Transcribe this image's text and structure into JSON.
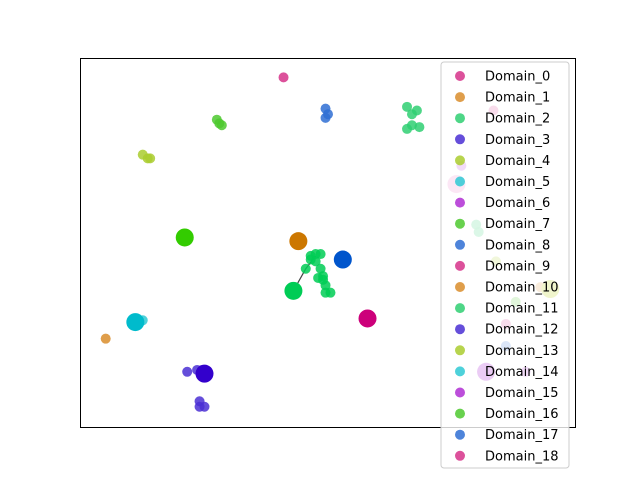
{
  "chart_data": {
    "type": "scatter",
    "title": "",
    "xlabel": "",
    "ylabel": "",
    "xlim": [
      0,
      100
    ],
    "ylim": [
      0,
      100
    ],
    "grid": false,
    "axes_ticks": false,
    "legend_position": "right",
    "series": [
      {
        "name": "Domain_0",
        "color": "#d6338a",
        "points": [
          [
            41,
            95
          ]
        ]
      },
      {
        "name": "Domain_1",
        "color": "#d98d2b",
        "points": [
          [
            5,
            24
          ]
        ]
      },
      {
        "name": "Domain_2",
        "color": "#2fcf72",
        "points": [
          [
            66,
            87
          ],
          [
            67,
            85
          ],
          [
            68,
            86
          ],
          [
            67,
            82
          ],
          [
            68.5,
            81.5
          ],
          [
            66,
            81
          ]
        ]
      },
      {
        "name": "Domain_3",
        "color": "#4a2fd4",
        "points": [
          [
            24,
            7
          ],
          [
            25,
            5.5
          ],
          [
            24,
            5.5
          ]
        ]
      },
      {
        "name": "Domain_4",
        "color": "#aacc2f",
        "points": [
          [
            12.5,
            74
          ],
          [
            13.5,
            73
          ],
          [
            14,
            73
          ]
        ]
      },
      {
        "name": "Domain_5",
        "color": "#2fc9d4",
        "points": [
          [
            76,
            66
          ]
        ]
      },
      {
        "name": "Domain_6",
        "color": "#b02fd4",
        "points": [
          [
            77,
            71
          ]
        ]
      },
      {
        "name": "Domain_7",
        "color": "#4dc92f",
        "points": [
          [
            27.5,
            83.5
          ],
          [
            28,
            82.5
          ],
          [
            28.5,
            82
          ]
        ]
      },
      {
        "name": "Domain_8",
        "color": "#2f6fd4",
        "points": [
          [
            49.5,
            86.5
          ],
          [
            49.5,
            84
          ],
          [
            50,
            85
          ]
        ]
      },
      {
        "name": "Domain_9",
        "color": "#d6338a",
        "points": [
          [
            83.5,
            86
          ]
        ]
      },
      {
        "name": "Domain_10",
        "color": "#d98d2b",
        "points": [
          [
            93,
            38
          ]
        ]
      },
      {
        "name": "Domain_11",
        "color": "#2fcf72",
        "points": [
          [
            80,
            55
          ],
          [
            80.5,
            53
          ]
        ]
      },
      {
        "name": "Domain_12",
        "color": "#4a2fd4",
        "points": [
          [
            21.5,
            15
          ],
          [
            23.5,
            15.5
          ],
          [
            24.5,
            15.5
          ],
          [
            24.5,
            14.5
          ]
        ]
      },
      {
        "name": "Domain_13",
        "color": "#aacc2f",
        "points": [
          [
            84,
            45
          ]
        ]
      },
      {
        "name": "Domain_14",
        "color": "#2fc9d4",
        "points": [
          [
            10.5,
            28.5
          ],
          [
            12.5,
            29
          ],
          [
            11,
            28
          ]
        ]
      },
      {
        "name": "Domain_15",
        "color": "#b02fd4",
        "points": [
          [
            90,
            15
          ]
        ]
      },
      {
        "name": "Domain_16",
        "color": "#4dc92f",
        "points": [
          [
            88,
            34
          ]
        ]
      },
      {
        "name": "Domain_17",
        "color": "#2f6fd4",
        "points": [
          [
            86,
            22
          ]
        ]
      },
      {
        "name": "Domain_18",
        "color": "#d6338a",
        "points": [
          [
            86,
            28
          ]
        ]
      }
    ],
    "centroids": [
      {
        "color": "#cc007a",
        "x": 58,
        "y": 29.5
      },
      {
        "color": "#cc7700",
        "x": 44,
        "y": 50.5
      },
      {
        "color": "#00cc55",
        "x": 43,
        "y": 37
      },
      {
        "color": "#3300cc",
        "x": 25,
        "y": 14.5
      },
      {
        "color": "#b4cc00",
        "x": 95,
        "y": 37.5
      },
      {
        "color": "#00bbcc",
        "x": 11,
        "y": 28.5
      },
      {
        "color": "#9900cc",
        "x": 82,
        "y": 15
      },
      {
        "color": "#33cc00",
        "x": 21,
        "y": 51.5
      },
      {
        "color": "#0055cc",
        "x": 53,
        "y": 45.5
      },
      {
        "color": "#ee88cc",
        "x": 76,
        "y": 66
      }
    ],
    "cluster_links": [
      {
        "color": "#00cc55",
        "points": [
          [
            47.5,
            46.5
          ],
          [
            45.5,
            43
          ],
          [
            43,
            37
          ]
        ]
      }
    ],
    "cluster11_points": [
      [
        46.5,
        46.5
      ],
      [
        47.5,
        47
      ],
      [
        48.5,
        47
      ],
      [
        46.5,
        45.5
      ],
      [
        47.5,
        45
      ],
      [
        48.5,
        43
      ],
      [
        45.5,
        43
      ],
      [
        49,
        41
      ],
      [
        48,
        40.5
      ],
      [
        49,
        40
      ],
      [
        49.5,
        38.5
      ],
      [
        50.5,
        36.5
      ],
      [
        49.5,
        36.5
      ]
    ]
  }
}
